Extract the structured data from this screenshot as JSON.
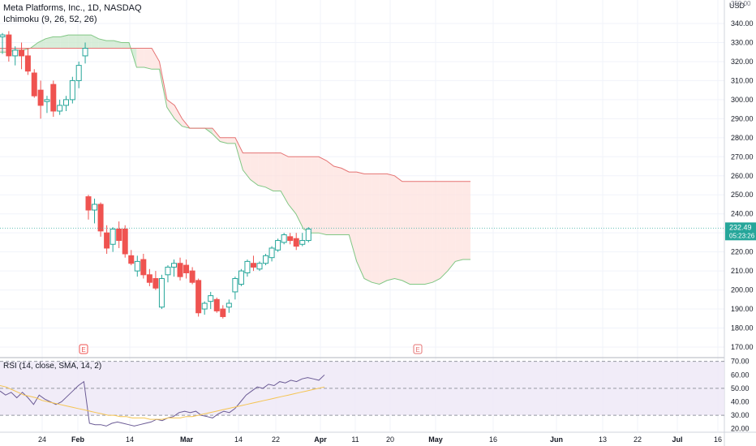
{
  "header": {
    "symbol_line": "Meta Platforms, Inc., 1D, NASDAQ",
    "indicator_line": "Ichimoku (9, 26, 52, 26)",
    "rsi_line": "RSI (14, close, SMA, 14, 2)"
  },
  "price_axis": {
    "currency": "USD",
    "top_partial": "350.00",
    "ticks": [
      "340.00",
      "330.00",
      "320.00",
      "310.00",
      "300.00",
      "290.00",
      "280.00",
      "270.00",
      "260.00",
      "250.00",
      "240.00",
      "230.00",
      "220.00",
      "210.00",
      "200.00",
      "190.00",
      "180.00",
      "170.00"
    ],
    "last_price": "232.49",
    "countdown": "05:23:26"
  },
  "rsi_axis": {
    "ticks": [
      "70.00",
      "60.00",
      "50.00",
      "40.00",
      "30.00",
      "20.00"
    ]
  },
  "time_axis": {
    "ticks": [
      "24",
      "Feb",
      "14",
      "Mar",
      "14",
      "22",
      "Apr",
      "11",
      "20",
      "May",
      "16",
      "Jun",
      "13",
      "22",
      "Jul",
      "16"
    ]
  },
  "earnings_markers": [
    "E",
    "E"
  ],
  "colors": {
    "up": "#26a69a",
    "down": "#ef5350",
    "up_fill": "#ffffff",
    "cloud_bull": "#c8e6c9",
    "cloud_bear": "#fde0dc",
    "rsi_line": "#6b5b95",
    "rsi_sma": "#f5c451",
    "rsi_band": "#ede7f6",
    "last_price_label": "#26a69a"
  },
  "chart_data": {
    "type": "candlestick",
    "title": "Meta Platforms, Inc., 1D, NASDAQ",
    "ylim": [
      165,
      350
    ],
    "candles": [
      {
        "o": 333,
        "h": 335,
        "l": 324,
        "c": 334
      },
      {
        "o": 334,
        "h": 336,
        "l": 320,
        "c": 323
      },
      {
        "o": 323,
        "h": 328,
        "l": 318,
        "c": 326
      },
      {
        "o": 326,
        "h": 330,
        "l": 316,
        "c": 323
      },
      {
        "o": 323,
        "h": 327,
        "l": 313,
        "c": 315
      },
      {
        "o": 314,
        "h": 316,
        "l": 301,
        "c": 302
      },
      {
        "o": 305,
        "h": 310,
        "l": 290,
        "c": 297
      },
      {
        "o": 299,
        "h": 302,
        "l": 293,
        "c": 300
      },
      {
        "o": 308,
        "h": 310,
        "l": 291,
        "c": 294
      },
      {
        "o": 294,
        "h": 300,
        "l": 292,
        "c": 297
      },
      {
        "o": 297,
        "h": 302,
        "l": 294,
        "c": 300
      },
      {
        "o": 300,
        "h": 312,
        "l": 298,
        "c": 310
      },
      {
        "o": 310,
        "h": 320,
        "l": 306,
        "c": 318
      },
      {
        "o": 323,
        "h": 330,
        "l": 319,
        "c": 327
      },
      {
        "o": 249,
        "h": 250,
        "l": 237,
        "c": 242
      },
      {
        "o": 242,
        "h": 248,
        "l": 235,
        "c": 245
      },
      {
        "o": 245,
        "h": 246,
        "l": 228,
        "c": 231
      },
      {
        "o": 230,
        "h": 234,
        "l": 219,
        "c": 222
      },
      {
        "o": 224,
        "h": 233,
        "l": 220,
        "c": 232
      },
      {
        "o": 232,
        "h": 236,
        "l": 222,
        "c": 226
      },
      {
        "o": 232,
        "h": 234,
        "l": 217,
        "c": 219
      },
      {
        "o": 218,
        "h": 221,
        "l": 213,
        "c": 214
      },
      {
        "o": 210,
        "h": 218,
        "l": 207,
        "c": 215
      },
      {
        "o": 216,
        "h": 219,
        "l": 206,
        "c": 208
      },
      {
        "o": 208,
        "h": 211,
        "l": 202,
        "c": 204
      },
      {
        "o": 206,
        "h": 210,
        "l": 200,
        "c": 201
      },
      {
        "o": 191,
        "h": 208,
        "l": 190,
        "c": 206
      },
      {
        "o": 208,
        "h": 213,
        "l": 204,
        "c": 212
      },
      {
        "o": 212,
        "h": 216,
        "l": 207,
        "c": 214
      },
      {
        "o": 214,
        "h": 217,
        "l": 205,
        "c": 207
      },
      {
        "o": 213,
        "h": 216,
        "l": 206,
        "c": 209
      },
      {
        "o": 210,
        "h": 212,
        "l": 203,
        "c": 204
      },
      {
        "o": 205,
        "h": 206,
        "l": 186,
        "c": 188
      },
      {
        "o": 190,
        "h": 194,
        "l": 187,
        "c": 193
      },
      {
        "o": 194,
        "h": 199,
        "l": 190,
        "c": 197
      },
      {
        "o": 195,
        "h": 196,
        "l": 188,
        "c": 189
      },
      {
        "o": 190,
        "h": 192,
        "l": 185,
        "c": 186
      },
      {
        "o": 191,
        "h": 195,
        "l": 188,
        "c": 193
      },
      {
        "o": 199,
        "h": 207,
        "l": 195,
        "c": 206
      },
      {
        "o": 203,
        "h": 211,
        "l": 202,
        "c": 210
      },
      {
        "o": 209,
        "h": 216,
        "l": 207,
        "c": 215
      },
      {
        "o": 214,
        "h": 218,
        "l": 210,
        "c": 212
      },
      {
        "o": 211,
        "h": 215,
        "l": 210,
        "c": 214
      },
      {
        "o": 214,
        "h": 219,
        "l": 213,
        "c": 218
      },
      {
        "o": 217,
        "h": 223,
        "l": 215,
        "c": 222
      },
      {
        "o": 221,
        "h": 227,
        "l": 220,
        "c": 226
      },
      {
        "o": 225,
        "h": 230,
        "l": 224,
        "c": 229
      },
      {
        "o": 228,
        "h": 230,
        "l": 224,
        "c": 226
      },
      {
        "o": 227,
        "h": 230,
        "l": 221,
        "c": 223
      },
      {
        "o": 224,
        "h": 230,
        "l": 223,
        "c": 226
      },
      {
        "o": 226,
        "h": 233,
        "l": 225,
        "c": 232
      }
    ],
    "cloud_span_a": [
      325,
      325,
      326,
      326,
      327,
      330,
      332,
      333,
      333,
      334,
      334,
      334,
      334,
      332,
      331,
      331,
      330,
      330,
      317,
      317,
      316,
      316,
      296,
      290,
      286,
      285,
      285,
      285,
      282,
      278,
      277,
      277,
      263,
      258,
      255,
      254,
      252,
      252,
      245,
      240,
      232,
      230,
      230,
      229,
      229,
      229,
      229,
      215,
      206,
      204,
      203,
      205,
      206,
      205,
      203,
      203,
      203,
      204,
      206,
      210,
      215,
      216,
      216
    ],
    "cloud_span_b": [
      327,
      327,
      327,
      327,
      327,
      327,
      327,
      327,
      327,
      327,
      327,
      327,
      327,
      327,
      327,
      327,
      327,
      327,
      327,
      327,
      327,
      320,
      300,
      297,
      290,
      285,
      285,
      285,
      285,
      280,
      280,
      280,
      272,
      272,
      272,
      272,
      272,
      272,
      270,
      270,
      270,
      270,
      270,
      268,
      265,
      264,
      262,
      262,
      261,
      261,
      261,
      261,
      260,
      257,
      257,
      257,
      257,
      257,
      257,
      257,
      257,
      257,
      257
    ],
    "rsi": [
      48,
      45,
      47,
      43,
      47,
      43,
      38,
      45,
      42,
      40,
      38,
      40,
      44,
      48,
      52,
      55,
      24,
      23,
      23,
      22,
      24,
      25,
      24,
      23,
      22,
      23,
      24,
      25,
      27,
      26,
      28,
      29,
      32,
      33,
      32,
      33,
      30,
      29,
      28,
      31,
      33,
      32,
      35,
      40,
      45,
      48,
      51,
      50,
      53,
      52,
      55,
      54,
      56,
      55,
      57,
      58,
      57,
      56,
      60
    ],
    "rsi_sma": [
      52,
      51,
      49,
      47,
      45,
      44,
      43,
      41,
      40,
      39,
      38,
      37,
      36,
      35,
      34,
      33,
      32,
      31,
      30,
      30,
      29,
      29,
      28,
      28,
      28,
      27,
      27,
      27,
      28,
      28,
      28,
      29,
      29,
      30,
      31,
      32,
      33,
      34,
      35,
      36,
      37,
      38,
      39,
      40,
      41,
      42,
      43,
      44,
      45,
      46,
      47,
      48,
      49,
      50,
      51
    ],
    "rsi_ylim": [
      18,
      71
    ],
    "rsi_levels": [
      70,
      50,
      30
    ]
  }
}
